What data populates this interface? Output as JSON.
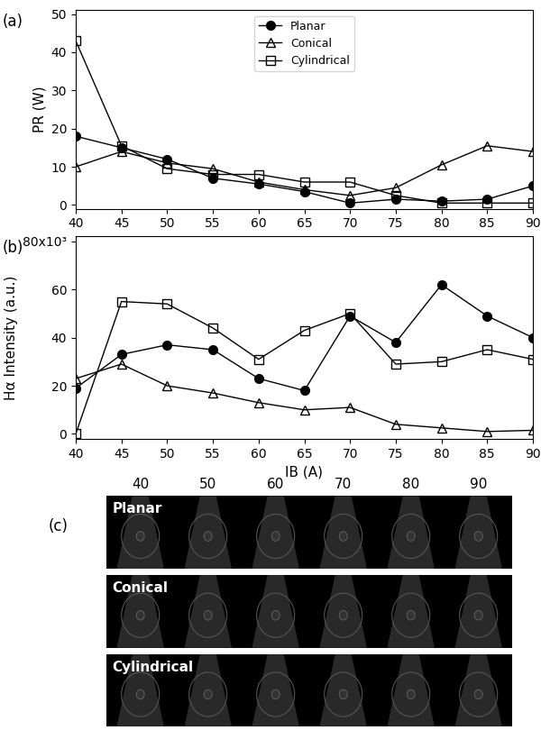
{
  "chart_data": [
    {
      "type": "line",
      "title": "(a)",
      "y_label": "PR (W)",
      "x": [
        40,
        45,
        50,
        55,
        60,
        65,
        70,
        75,
        80,
        85,
        90
      ],
      "series": [
        {
          "name": "Planar",
          "color": "#000000",
          "marker": "circle",
          "values": [
            18,
            15,
            12,
            7,
            5.5,
            3.5,
            0.5,
            1.5,
            1,
            1.5,
            5
          ]
        },
        {
          "name": "Conical",
          "color": "#000000",
          "marker": "triangle-open",
          "values": [
            10,
            14,
            11,
            9.5,
            6,
            4,
            2.5,
            4.5,
            10.5,
            15.5,
            14
          ]
        },
        {
          "name": "Cylindrical",
          "color": "#000000",
          "marker": "square-open",
          "values": [
            43,
            15.5,
            9.5,
            8,
            8,
            6,
            6,
            2.5,
            0.5,
            0.5,
            0.5
          ]
        }
      ],
      "xlim": [
        40,
        90
      ],
      "xticks": [
        40,
        45,
        50,
        55,
        60,
        65,
        70,
        75,
        80,
        85,
        90
      ],
      "ylim": [
        -1,
        51
      ],
      "yticks": [
        0,
        10,
        20,
        30,
        40,
        50
      ],
      "legend": "upper center",
      "grid": false
    },
    {
      "type": "line",
      "title": "(b)",
      "x_label": "IB (A)",
      "y_label": "Hα Intensity (a.u.)",
      "x": [
        40,
        45,
        50,
        55,
        60,
        65,
        70,
        75,
        80,
        85,
        90
      ],
      "series": [
        {
          "name": "Planar",
          "color": "#000000",
          "marker": "circle",
          "values": [
            19,
            33,
            37,
            35,
            23,
            18,
            49,
            38,
            62,
            49,
            40
          ]
        },
        {
          "name": "Conical",
          "color": "#000000",
          "marker": "triangle-open",
          "values": [
            23,
            29,
            20,
            17,
            13,
            10,
            11,
            4,
            2.5,
            1,
            1.5
          ]
        },
        {
          "name": "Cylindrical",
          "color": "#000000",
          "marker": "square-open",
          "values": [
            0,
            55,
            54,
            44,
            31,
            43,
            50,
            29,
            30,
            35,
            31
          ]
        }
      ],
      "xlim": [
        40,
        90
      ],
      "xticks": [
        40,
        45,
        50,
        55,
        60,
        65,
        70,
        75,
        80,
        85,
        90
      ],
      "ylim": [
        -2,
        82
      ],
      "yticks": [
        0,
        20,
        40,
        60,
        {
          "value": 80,
          "label": "80x10³"
        }
      ],
      "grid": false
    }
  ],
  "image_panel": {
    "title": "(c)",
    "columns": [
      40,
      50,
      60,
      70,
      80,
      90
    ],
    "rows": [
      "Planar",
      "Conical",
      "Cylindrical"
    ]
  }
}
